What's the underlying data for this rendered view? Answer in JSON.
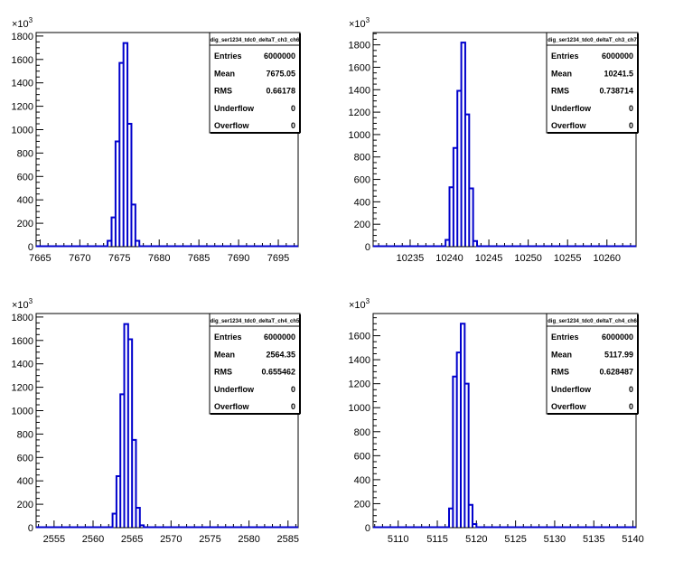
{
  "chart_data": [
    {
      "type": "histogram",
      "name": "dig_ser1234_tdc0_deltaT_ch3_ch6",
      "y_exponent": "10^3",
      "x_ticks": [
        7665,
        7670,
        7675,
        7680,
        7685,
        7690,
        7695
      ],
      "xlim": [
        7664.5,
        7697.5
      ],
      "y_ticks": [
        0,
        200,
        400,
        600,
        800,
        1000,
        1200,
        1400,
        1600,
        1800
      ],
      "ylim": [
        0,
        1830
      ],
      "bin_width": 0.5,
      "bins": [
        [
          7673.5,
          50
        ],
        [
          7674.0,
          250
        ],
        [
          7674.5,
          900
        ],
        [
          7675.0,
          1570
        ],
        [
          7675.5,
          1740
        ],
        [
          7676.0,
          1050
        ],
        [
          7676.5,
          360
        ],
        [
          7677.0,
          50
        ]
      ],
      "stats": {
        "Entries": "6000000",
        "Mean": "7675.05",
        "RMS": "0.66178",
        "Underflow": "0",
        "Overflow": "0"
      }
    },
    {
      "type": "histogram",
      "name": "dig_ser1234_tdc0_deltaT_ch3_ch7",
      "y_exponent": "10^3",
      "x_ticks": [
        10235,
        10240,
        10245,
        10250,
        10255,
        10260
      ],
      "xlim": [
        10230.3,
        10263.7
      ],
      "y_ticks": [
        0,
        200,
        400,
        600,
        800,
        1000,
        1200,
        1400,
        1600,
        1800
      ],
      "ylim": [
        0,
        1910
      ],
      "bin_width": 0.5,
      "bins": [
        [
          10239.5,
          60
        ],
        [
          10240.0,
          530
        ],
        [
          10240.5,
          880
        ],
        [
          10241.0,
          1390
        ],
        [
          10241.5,
          1820
        ],
        [
          10242.0,
          1180
        ],
        [
          10242.5,
          520
        ],
        [
          10243.0,
          50
        ]
      ],
      "stats": {
        "Entries": "6000000",
        "Mean": "10241.5",
        "RMS": "0.738714",
        "Underflow": "0",
        "Overflow": "0"
      }
    },
    {
      "type": "histogram",
      "name": "dig_ser1234_tdc0_deltaT_ch4_ch5",
      "y_exponent": "10^3",
      "x_ticks": [
        2555,
        2560,
        2565,
        2570,
        2575,
        2580,
        2585
      ],
      "xlim": [
        2552.7,
        2586.3
      ],
      "y_ticks": [
        0,
        200,
        400,
        600,
        800,
        1000,
        1200,
        1400,
        1600,
        1800
      ],
      "ylim": [
        0,
        1830
      ],
      "bin_width": 0.5,
      "bins": [
        [
          2562.5,
          120
        ],
        [
          2563.0,
          440
        ],
        [
          2563.5,
          1140
        ],
        [
          2564.0,
          1740
        ],
        [
          2564.5,
          1610
        ],
        [
          2565.0,
          750
        ],
        [
          2565.5,
          170
        ],
        [
          2566.0,
          20
        ]
      ],
      "stats": {
        "Entries": "6000000",
        "Mean": "2564.35",
        "RMS": "0.655462",
        "Underflow": "0",
        "Overflow": "0"
      }
    },
    {
      "type": "histogram",
      "name": "dig_ser1234_tdc0_deltaT_ch4_ch6",
      "y_exponent": "10^3",
      "x_ticks": [
        5110,
        5115,
        5120,
        5125,
        5130,
        5135,
        5140
      ],
      "xlim": [
        5106.8,
        5140.4
      ],
      "y_ticks": [
        0,
        200,
        400,
        600,
        800,
        1000,
        1200,
        1400,
        1600
      ],
      "ylim": [
        0,
        1785
      ],
      "bin_width": 0.5,
      "bins": [
        [
          5116.5,
          160
        ],
        [
          5117.0,
          1260
        ],
        [
          5117.5,
          1460
        ],
        [
          5118.0,
          1700
        ],
        [
          5118.5,
          1200
        ],
        [
          5119.0,
          190
        ],
        [
          5119.5,
          30
        ]
      ],
      "stats": {
        "Entries": "6000000",
        "Mean": "5117.99",
        "RMS": "0.628487",
        "Underflow": "0",
        "Overflow": "0"
      }
    }
  ]
}
